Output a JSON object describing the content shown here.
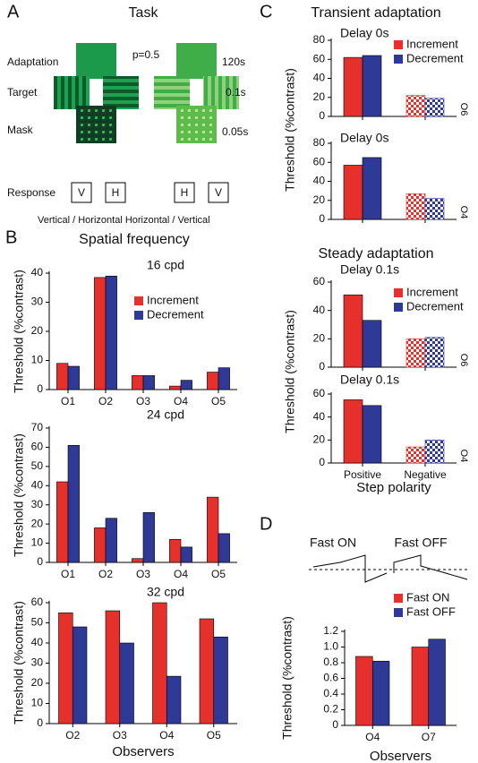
{
  "panel_labels": [
    "A",
    "B",
    "C",
    "D"
  ],
  "task": {
    "title": "Task",
    "probability": "p=0.5",
    "rows": [
      "Adaptation",
      "Target",
      "Mask",
      "Response"
    ],
    "durations": [
      "120s",
      "0.1s",
      "0.05s"
    ],
    "responses_left": [
      "V",
      "H"
    ],
    "responses_right": [
      "H",
      "V"
    ],
    "caption": "Vertical / Horizontal Horizontal / Vertical"
  },
  "section_titles": [
    "Spatial frequency",
    "Transient adaptation",
    "Steady adaptation"
  ],
  "waveform_labels": [
    "Fast ON",
    "Fast OFF"
  ],
  "chart_data": [
    {
      "type": "bar",
      "title": "16 cpd",
      "ylabel": "Threshold (%contrast)",
      "legend": "upper right",
      "categories": [
        "O1",
        "O2",
        "O3",
        "O4",
        "O5"
      ],
      "series": [
        {
          "name": "Increment",
          "color": "#e5302c",
          "values": [
            9,
            38.5,
            4.8,
            1.2,
            6
          ]
        },
        {
          "name": "Decrement",
          "color": "#2e3a96",
          "values": [
            8,
            39,
            4.8,
            3.2,
            7.5
          ]
        }
      ],
      "ylim": [
        0,
        40
      ],
      "yticks": [
        0,
        10,
        20,
        30,
        40
      ]
    },
    {
      "type": "bar",
      "title": "24 cpd",
      "ylabel": "Threshold (%contrast)",
      "categories": [
        "O1",
        "O2",
        "O3",
        "O4",
        "O5"
      ],
      "series": [
        {
          "name": "Increment",
          "color": "#e5302c",
          "values": [
            42,
            18,
            2,
            12,
            34
          ]
        },
        {
          "name": "Decrement",
          "color": "#2e3a96",
          "values": [
            61,
            23,
            26,
            8,
            15
          ]
        }
      ],
      "ylim": [
        0,
        70
      ],
      "yticks": [
        0,
        10,
        20,
        30,
        40,
        50,
        60,
        70
      ]
    },
    {
      "type": "bar",
      "title": "32 cpd",
      "ylabel": "Threshold (%contrast)",
      "xlabel": "Observers",
      "categories": [
        "O2",
        "O3",
        "O4",
        "O5"
      ],
      "series": [
        {
          "name": "Increment",
          "color": "#e5302c",
          "values": [
            55,
            56,
            60,
            52
          ]
        },
        {
          "name": "Decrement",
          "color": "#2e3a96",
          "values": [
            48,
            40,
            23.5,
            43
          ]
        }
      ],
      "ylim": [
        0,
        60
      ],
      "yticks": [
        0,
        10,
        20,
        30,
        40,
        50,
        60
      ]
    },
    {
      "type": "bar",
      "title": "Delay 0s",
      "ylabel": "Threshold (%contrast)",
      "observer": "O6",
      "legend": "upper right",
      "patterns": [
        "solid",
        "checker"
      ],
      "series": [
        {
          "name": "Increment",
          "color": "#e5302c",
          "values": [
            62,
            22
          ]
        },
        {
          "name": "Decrement",
          "color": "#2e3a96",
          "values": [
            64,
            19
          ]
        }
      ],
      "ylim": [
        0,
        80
      ],
      "yticks": [
        0,
        20,
        40,
        60,
        80
      ]
    },
    {
      "type": "bar",
      "title": "Delay 0s",
      "observer": "O4",
      "patterns": [
        "solid",
        "checker"
      ],
      "series": [
        {
          "color": "#e5302c",
          "values": [
            57,
            27
          ]
        },
        {
          "color": "#2e3a96",
          "values": [
            65,
            22
          ]
        }
      ],
      "ylim": [
        0,
        80
      ],
      "yticks": [
        0,
        20,
        40,
        60,
        80
      ]
    },
    {
      "type": "bar",
      "title": "Delay 0.1s",
      "ylabel": "Threshold (%contrast)",
      "observer": "O6",
      "legend": "upper right",
      "patterns": [
        "solid",
        "checker"
      ],
      "series": [
        {
          "name": "Increment",
          "color": "#e5302c",
          "values": [
            51,
            20
          ]
        },
        {
          "name": "Decrement",
          "color": "#2e3a96",
          "values": [
            33,
            21
          ]
        }
      ],
      "ylim": [
        0,
        60
      ],
      "yticks": [
        0,
        20,
        40,
        60
      ]
    },
    {
      "type": "bar",
      "title": "Delay 0.1s",
      "observer": "O4",
      "xlabel": "Step polarity",
      "patterns": [
        "solid",
        "checker"
      ],
      "categories": [
        "Positive",
        "Negative"
      ],
      "series": [
        {
          "color": "#e5302c",
          "values": [
            55,
            14
          ]
        },
        {
          "color": "#2e3a96",
          "values": [
            50,
            20
          ]
        }
      ],
      "ylim": [
        0,
        60
      ],
      "yticks": [
        0,
        20,
        40,
        60
      ]
    },
    {
      "type": "bar",
      "ylabel": "Threshold (%contrast)",
      "xlabel": "Observers",
      "legend": "upper right",
      "categories": [
        "O4",
        "O7"
      ],
      "series": [
        {
          "name": "Fast ON",
          "color": "#e5302c",
          "values": [
            0.88,
            1.0
          ]
        },
        {
          "name": "Fast OFF",
          "color": "#2e3a96",
          "values": [
            0.82,
            1.1
          ]
        }
      ],
      "ylim": [
        0,
        1.2
      ],
      "yticks": [
        0,
        0.2,
        0.4,
        0.6,
        0.8,
        {
          "value": 1,
          "label": "1.0"
        },
        1.2
      ]
    }
  ]
}
